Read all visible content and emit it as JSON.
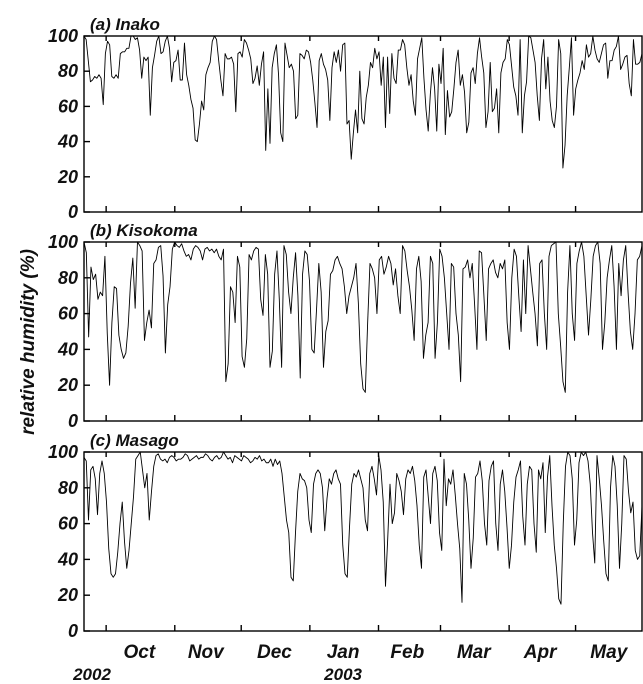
{
  "figure": {
    "ylabel": "relative humidity (%)",
    "month_labels": [
      "Oct",
      "Nov",
      "Dec",
      "Jan",
      "Feb",
      "Mar",
      "Apr",
      "May"
    ],
    "year_labels": [
      "2002",
      "2003"
    ],
    "ytick_labels": [
      "0",
      "20",
      "40",
      "60",
      "80",
      "100"
    ]
  },
  "chart_data": [
    {
      "type": "line",
      "title": "(a) Inako",
      "ylabel": "relative humidity (%)",
      "ylim": [
        0,
        100
      ],
      "x_start": "2002-09-21",
      "x_end": "2003-05-31",
      "series": [
        {
          "values": [
            100,
            98,
            86,
            74,
            75,
            77,
            76,
            78,
            76,
            61,
            90,
            97,
            95,
            77,
            76,
            78,
            76,
            90,
            91,
            91,
            93,
            93,
            100,
            100,
            98,
            99,
            92,
            76,
            88,
            86,
            88,
            55,
            82,
            89,
            97,
            100,
            90,
            91,
            97,
            100,
            93,
            74,
            85,
            86,
            92,
            75,
            75,
            96,
            78,
            72,
            64,
            59,
            41,
            40,
            50,
            63,
            58,
            78,
            82,
            85,
            97,
            100,
            98,
            86,
            75,
            66,
            90,
            87,
            87,
            88,
            84,
            57,
            90,
            91,
            88,
            98,
            96,
            92,
            87,
            73,
            76,
            83,
            72,
            84,
            91,
            35,
            70,
            39,
            82,
            90,
            95,
            78,
            45,
            40,
            96,
            89,
            82,
            84,
            80,
            53,
            55,
            90,
            89,
            87,
            92,
            91,
            85,
            75,
            62,
            48,
            86,
            90,
            84,
            81,
            75,
            52,
            82,
            91,
            85,
            92,
            80,
            95,
            96,
            50,
            52,
            30,
            45,
            58,
            45,
            80,
            53,
            50,
            65,
            72,
            85,
            82,
            93,
            87,
            91,
            72,
            88,
            48,
            88,
            56,
            90,
            76,
            73,
            92,
            92,
            98,
            95,
            82,
            72,
            78,
            63,
            55,
            87,
            93,
            99,
            76,
            58,
            46,
            67,
            82,
            70,
            46,
            84,
            73,
            93,
            44,
            69,
            54,
            57,
            70,
            85,
            92,
            72,
            78,
            68,
            45,
            51,
            79,
            82,
            73,
            90,
            99,
            88,
            79,
            48,
            57,
            85,
            57,
            59,
            70,
            45,
            79,
            85,
            87,
            98,
            95,
            83,
            71,
            66,
            55,
            98,
            45,
            66,
            74,
            100,
            99,
            92,
            85,
            66,
            52,
            87,
            98,
            70,
            88,
            63,
            52,
            48,
            60,
            98,
            90,
            25,
            38,
            66,
            82,
            99,
            55,
            70,
            75,
            79,
            86,
            81,
            95,
            88,
            90,
            100,
            92,
            87,
            85,
            90,
            95,
            96,
            76,
            86,
            86,
            92,
            94,
            100,
            81,
            84,
            88,
            89,
            73,
            66,
            98,
            84,
            84,
            85,
            90
          ]
        }
      ]
    },
    {
      "type": "line",
      "title": "(b) Kisokoma",
      "ylabel": "relative humidity (%)",
      "ylim": [
        0,
        100
      ],
      "x_start": "2002-09-21",
      "x_end": "2003-05-31",
      "series": [
        {
          "values": [
            100,
            94,
            47,
            86,
            79,
            82,
            68,
            72,
            70,
            92,
            49,
            20,
            55,
            75,
            74,
            48,
            40,
            35,
            38,
            53,
            77,
            91,
            63,
            100,
            98,
            95,
            45,
            55,
            62,
            52,
            88,
            90,
            97,
            98,
            81,
            38,
            65,
            75,
            96,
            100,
            98,
            97,
            99,
            95,
            92,
            93,
            90,
            96,
            98,
            97,
            95,
            90,
            96,
            97,
            95,
            96,
            94,
            96,
            92,
            90,
            96,
            22,
            32,
            75,
            72,
            55,
            92,
            86,
            36,
            30,
            46,
            93,
            90,
            95,
            97,
            96,
            68,
            59,
            93,
            82,
            30,
            39,
            82,
            95,
            68,
            30,
            98,
            93,
            72,
            60,
            80,
            94,
            70,
            24,
            82,
            95,
            93,
            78,
            40,
            38,
            62,
            88,
            72,
            30,
            50,
            56,
            82,
            84,
            90,
            92,
            88,
            85,
            75,
            60,
            70,
            75,
            80,
            88,
            66,
            32,
            18,
            16,
            55,
            88,
            85,
            80,
            60,
            90,
            92,
            82,
            86,
            92,
            88,
            76,
            85,
            70,
            60,
            98,
            95,
            84,
            75,
            62,
            45,
            85,
            92,
            78,
            35,
            48,
            55,
            92,
            88,
            35,
            55,
            96,
            92,
            80,
            60,
            40,
            88,
            86,
            60,
            48,
            22,
            85,
            86,
            90,
            80,
            88,
            65,
            40,
            95,
            94,
            70,
            45,
            85,
            88,
            90,
            83,
            80,
            88,
            85,
            90,
            55,
            40,
            80,
            96,
            92,
            70,
            50,
            90,
            60,
            98,
            85,
            72,
            60,
            42,
            88,
            90,
            60,
            40,
            92,
            98,
            99,
            100,
            60,
            42,
            22,
            16,
            72,
            98,
            60,
            45,
            88,
            95,
            100,
            92,
            70,
            48,
            68,
            92,
            98,
            100,
            88,
            40,
            55,
            80,
            90,
            98,
            75,
            40,
            88,
            70,
            90,
            98,
            72,
            50,
            40,
            60,
            90,
            92,
            98
          ]
        }
      ]
    },
    {
      "type": "line",
      "title": "(c) Masago",
      "ylabel": "relative humidity (%)",
      "ylim": [
        0,
        100
      ],
      "x_start": "2002-09-21",
      "x_end": "2003-05-31",
      "series": [
        {
          "values": [
            97,
            95,
            62,
            90,
            92,
            85,
            65,
            88,
            95,
            88,
            72,
            46,
            32,
            30,
            32,
            44,
            60,
            72,
            50,
            35,
            45,
            60,
            75,
            96,
            98,
            100,
            90,
            80,
            88,
            62,
            78,
            92,
            98,
            99,
            96,
            95,
            96,
            94,
            97,
            98,
            97,
            95,
            96,
            96,
            97,
            99,
            98,
            95,
            96,
            97,
            98,
            96,
            97,
            97,
            99,
            98,
            96,
            95,
            97,
            98,
            96,
            97,
            100,
            98,
            96,
            97,
            94,
            98,
            97,
            96,
            95,
            98,
            97,
            96,
            94,
            95,
            97,
            96,
            98,
            95,
            96,
            94,
            94,
            96,
            92,
            96,
            93,
            95,
            88,
            75,
            62,
            55,
            30,
            28,
            55,
            78,
            88,
            85,
            84,
            80,
            62,
            55,
            82,
            88,
            90,
            88,
            80,
            56,
            74,
            85,
            82,
            88,
            90,
            85,
            82,
            48,
            32,
            30,
            58,
            82,
            88,
            86,
            90,
            85,
            80,
            62,
            56,
            88,
            92,
            85,
            76,
            98,
            90,
            72,
            25,
            52,
            82,
            60,
            66,
            88,
            84,
            78,
            65,
            85,
            90,
            88,
            92,
            84,
            70,
            48,
            35,
            86,
            90,
            75,
            60,
            88,
            92,
            84,
            55,
            45,
            96,
            70,
            85,
            82,
            90,
            76,
            60,
            46,
            16,
            88,
            82,
            62,
            35,
            52,
            86,
            88,
            95,
            84,
            60,
            48,
            84,
            92,
            95,
            60,
            45,
            82,
            90,
            78,
            58,
            35,
            48,
            72,
            86,
            90,
            95,
            64,
            48,
            82,
            92,
            90,
            60,
            44,
            90,
            85,
            94,
            55,
            86,
            98,
            70,
            48,
            35,
            18,
            15,
            60,
            92,
            100,
            98,
            85,
            48,
            62,
            94,
            100,
            98,
            100,
            95,
            82,
            55,
            38,
            98,
            85,
            70,
            50,
            32,
            28,
            80,
            98,
            92,
            70,
            35,
            60,
            98,
            96,
            78,
            66,
            72,
            45,
            40,
            42,
            70
          ]
        }
      ]
    }
  ]
}
